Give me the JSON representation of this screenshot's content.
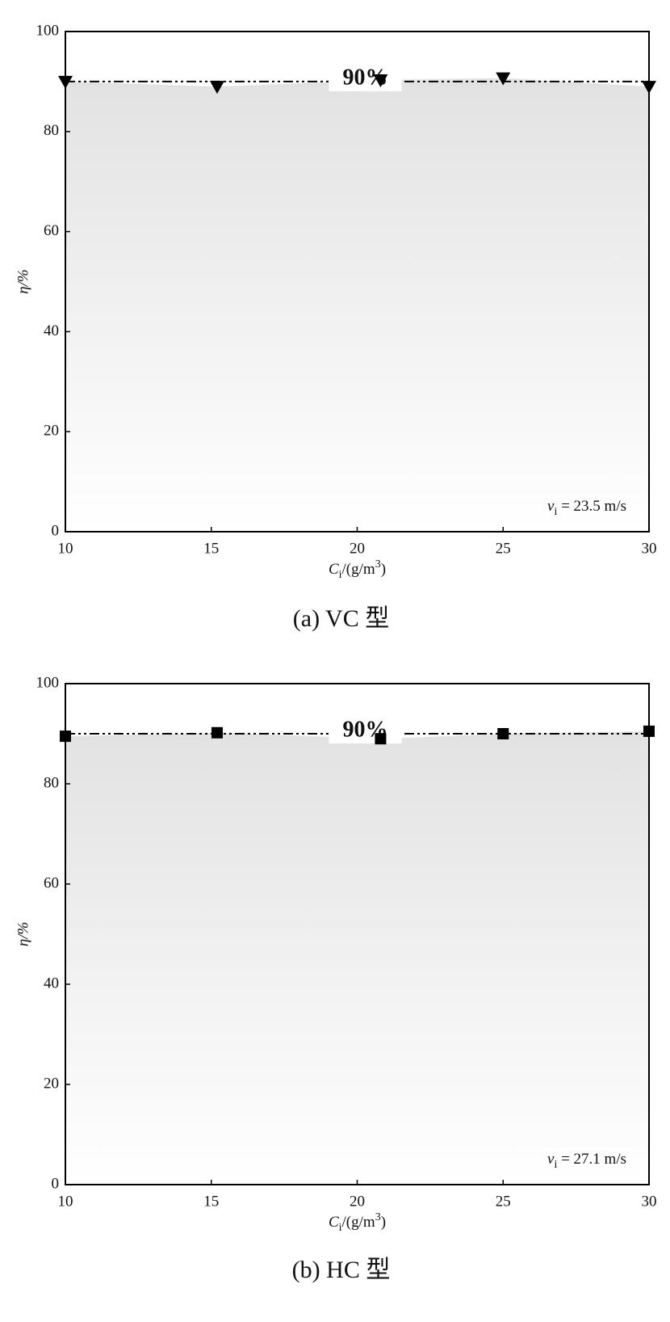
{
  "chart_data": [
    {
      "type": "scatter",
      "x": [
        10,
        15.2,
        20.8,
        25,
        30
      ],
      "values": [
        90,
        89,
        90.3,
        90.7,
        89
      ],
      "marker": "triangle-down",
      "color": "#000000",
      "xlim": [
        10,
        30
      ],
      "xticks": [
        10,
        15,
        20,
        25,
        30
      ],
      "ylim": [
        0,
        100
      ],
      "yticks": [
        0,
        20,
        40,
        60,
        80,
        100
      ],
      "xlabel": {
        "symbol": "C",
        "subscript": "i",
        "unit": "/(g/m",
        "superscript": "3",
        "end": ")"
      },
      "ylabel": "η/%",
      "reference_line": {
        "value": 90,
        "label": "90%"
      },
      "annotation": {
        "symbol": "v",
        "subscript": "i",
        "text": " = 23.5 m/s"
      },
      "caption": "(a) VC 型"
    },
    {
      "type": "scatter",
      "x": [
        10,
        15.2,
        20.8,
        25,
        30
      ],
      "values": [
        89.5,
        90.2,
        89,
        90,
        90.5
      ],
      "marker": "square",
      "color": "#000000",
      "xlim": [
        10,
        30
      ],
      "xticks": [
        10,
        15,
        20,
        25,
        30
      ],
      "ylim": [
        0,
        100
      ],
      "yticks": [
        0,
        20,
        40,
        60,
        80,
        100
      ],
      "xlabel": {
        "symbol": "C",
        "subscript": "i",
        "unit": "/(g/m",
        "superscript": "3",
        "end": ")"
      },
      "ylabel": "η/%",
      "reference_line": {
        "value": 90,
        "label": "90%"
      },
      "annotation": {
        "symbol": "v",
        "subscript": "i",
        "text": " = 27.1 m/s"
      },
      "caption": "(b) HC 型"
    }
  ]
}
